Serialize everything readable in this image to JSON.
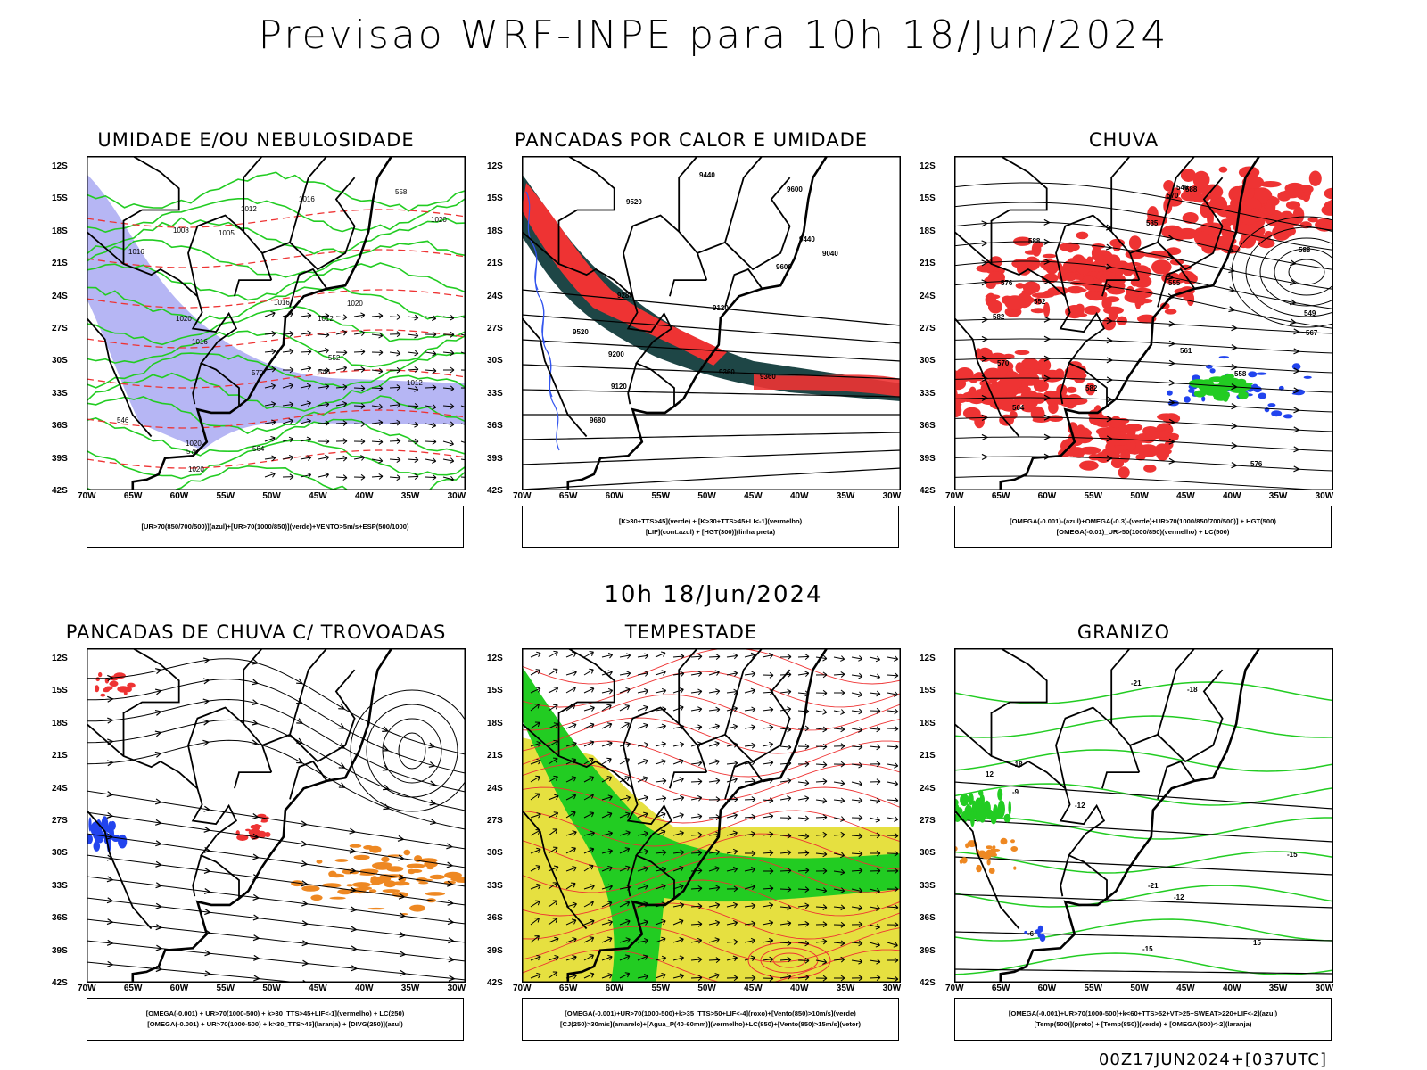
{
  "header": {
    "title": "Previsao WRF-INPE  para 10h 18/Jun/2024"
  },
  "middle_title": "10h 18/Jun/2024",
  "footer": "00Z17JUN2024+[037UTC]",
  "axes": {
    "lat_labels": [
      "12S",
      "15S",
      "18S",
      "21S",
      "24S",
      "27S",
      "30S",
      "33S",
      "36S",
      "39S",
      "42S"
    ],
    "lon_labels": [
      "70W",
      "65W",
      "60W",
      "55W",
      "50W",
      "45W",
      "40W",
      "35W",
      "30W"
    ]
  },
  "chart_data": [
    {
      "type": "map",
      "title": "UMIDADE E/OU NEBULOSIDADE",
      "legend": [
        "[UR>70(850/700/500)](azul)+[UR>70(1000/850)](verde)+VENTO>5m/s+ESP(500/1000)"
      ],
      "contour_labels": [
        "1012",
        "1016",
        "1016",
        "1016",
        "1020",
        "1020",
        "1020",
        "1012",
        "1008",
        "1005",
        "1016",
        "1020",
        "1020",
        "1012",
        "570",
        "576",
        "564",
        "558",
        "552",
        "546",
        "546"
      ],
      "colors": {
        "high_rh": "#9e9ef0",
        "low_rh": "#22cc22",
        "thickness": "#ee3333"
      }
    },
    {
      "type": "map",
      "title": "PANCADAS POR CALOR E UMIDADE",
      "legend": [
        "[K>30+TTS>45](verde) + [K>30+TTS>45+LI<-1](vermelho)",
        "[LIF](cont.azul) + [HGT(300)](linha preta)"
      ],
      "contour_labels": [
        "9680",
        "9600",
        "9520",
        "9440",
        "9360",
        "9280",
        "9200",
        "9120",
        "9040",
        "9600",
        "9520",
        "9440",
        "9360",
        "9120"
      ],
      "colors": {
        "green": "#1e4646",
        "red": "#ee3333",
        "lif": "#3355ee"
      }
    },
    {
      "type": "map",
      "title": "CHUVA",
      "legend": [
        "[OMEGA(-0.001)-(azul)+OMEGA(-0.3)-(verde)+UR>70(1000/850/700/500)] + HGT(500)",
        "[OMEGA(-0.01)_UR>50(1000/850)(vermelho) + LC(500)"
      ],
      "contour_labels": [
        "588",
        "582",
        "576",
        "570",
        "567",
        "564",
        "561",
        "558",
        "555",
        "552",
        "549",
        "546",
        "582",
        "588",
        "585",
        "570",
        "576",
        "588"
      ],
      "colors": {
        "red": "#ee3333",
        "blue": "#2244ee",
        "green": "#22cc22"
      }
    },
    {
      "type": "map",
      "title": "PANCADAS DE CHUVA C/ TROVOADAS",
      "legend": [
        "[OMEGA(-0.001) + UR>70(1000-500) + k>30_TTS>45+LIF<-1](vermelho) + LC(250)",
        "[OMEGA(-0.001) + UR>70(1000-500) + k>30_TTS>45](laranja) + [DIVG(250)](azul)"
      ],
      "colors": {
        "red": "#ee3333",
        "orange": "#ee8822",
        "blue": "#2244ee"
      }
    },
    {
      "type": "map",
      "title": "TEMPESTADE",
      "legend": [
        "[OMEGA(-0.001)+UR>70(1000-500)+k>35_TTS>50+LIF<-4](roxo)+[Vento(850)>10m/s](verde)",
        "[CJ(250)>30m/s](amarelo)+[Agua_P(40-60mm)](vermelho)+LC(850)+[Vento(850)>15m/s](vetor)"
      ],
      "colors": {
        "yellow": "#e6e040",
        "green": "#22cc22",
        "red": "#ee3333"
      }
    },
    {
      "type": "map",
      "title": "GRANIZO",
      "legend": [
        "[OMEGA(-0.001)+UR>70(1000-500)+k<60+TTS>52+VT>25+SWEAT>220+LIF<-2](azul)",
        "[Temp(500)](preto) + [Temp(850)](verde) + [OMEGA(500)<-2](laranja)"
      ],
      "contour_labels": [
        "-6",
        "-9",
        "-12",
        "-15",
        "-18",
        "-21",
        "-12",
        "-15",
        "-18",
        "-21",
        "12",
        "15"
      ],
      "colors": {
        "green": "#22cc22",
        "orange": "#ee8822",
        "blue": "#2244ee"
      }
    }
  ]
}
